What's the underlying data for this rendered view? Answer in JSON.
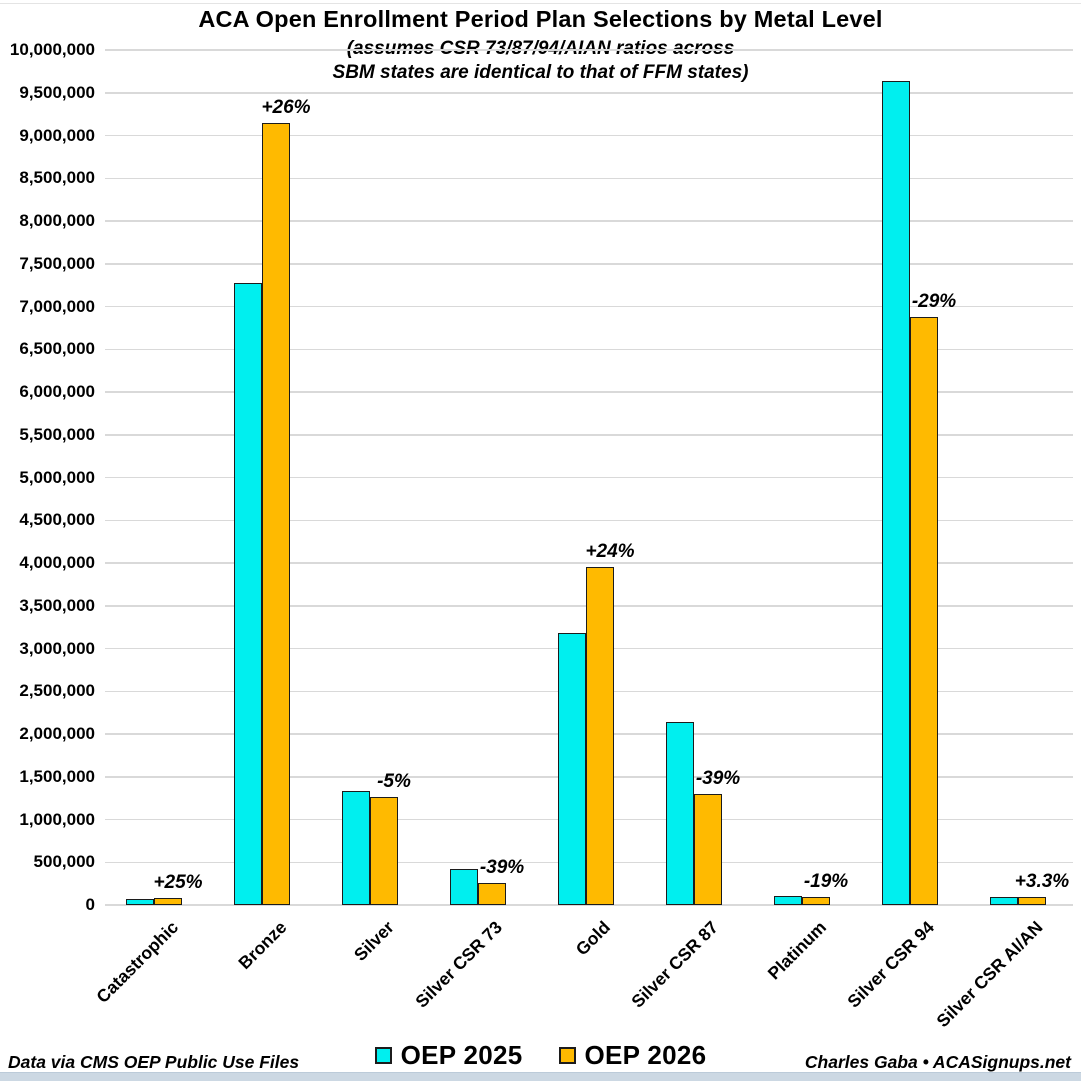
{
  "chart_data": {
    "type": "bar",
    "title": "ACA Open Enrollment Period Plan Selections by Metal Level",
    "subtitle_lines": [
      "(assumes CSR 73/87/94/AIAN ratios across",
      "SBM states are identical to that of FFM states)"
    ],
    "categories": [
      "Catastrophic",
      "Bronze",
      "Silver",
      "Silver CSR 73",
      "Gold",
      "Silver CSR 87",
      "Platinum",
      "Silver CSR 94",
      "Silver CSR AI/AN"
    ],
    "series": [
      {
        "name": "OEP 2025",
        "color": "#00EFEF",
        "values": [
          65000,
          7270000,
          1335000,
          420000,
          3185000,
          2140000,
          110000,
          9640000,
          88000
        ]
      },
      {
        "name": "OEP 2026",
        "color": "#FFBA00",
        "values": [
          81000,
          9150000,
          1265000,
          258000,
          3955000,
          1300000,
          89000,
          6880000,
          91000
        ]
      }
    ],
    "annotations": [
      "+25%",
      "+26%",
      "-5%",
      "-39%",
      "+24%",
      "-39%",
      "-19%",
      "-29%",
      "+3.3%"
    ],
    "ylim": [
      0,
      10000000
    ],
    "ytick_step": 500000,
    "ytick_labels": [
      "0",
      "500,000",
      "1,000,000",
      "1,500,000",
      "2,000,000",
      "2,500,000",
      "3,000,000",
      "3,500,000",
      "4,000,000",
      "4,500,000",
      "5,000,000",
      "5,500,000",
      "6,000,000",
      "6,500,000",
      "7,000,000",
      "7,500,000",
      "8,000,000",
      "8,500,000",
      "9,000,000",
      "9,500,000",
      "10,000,000"
    ],
    "grid": "horizontal",
    "legend_position": "bottom-center"
  },
  "footer": {
    "left": "Data via CMS OEP Public Use Files",
    "right": "Charles Gaba • ACASignups.net"
  },
  "colors": {
    "series_2025": "#00EFEF",
    "series_2026": "#FFBA00",
    "bar_border": "#1c1c1c",
    "gridline": "#d9d9d9",
    "background": "#ffffff",
    "text": "#000000",
    "bottom_strip": "#ccd8e3"
  }
}
